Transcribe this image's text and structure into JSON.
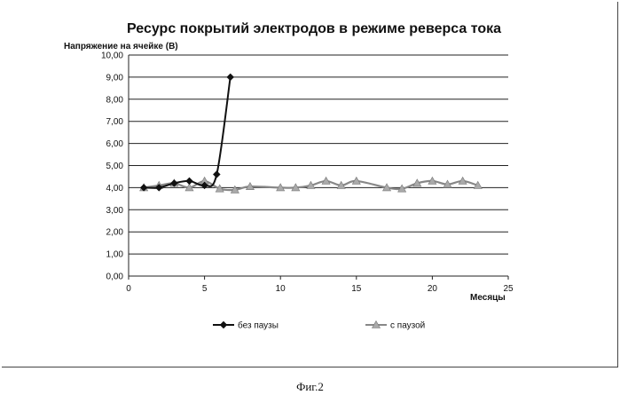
{
  "caption": "Фиг.2",
  "chart_data": {
    "type": "line",
    "title": "Ресурс покрытий  электродов в режиме реверса тока",
    "ylabel": "Напряжение на ячейке (В)",
    "xlabel": "Месяцы",
    "xlim": [
      0,
      25
    ],
    "ylim": [
      0,
      10
    ],
    "xticks": [
      "0",
      "5",
      "10",
      "15",
      "20",
      "25"
    ],
    "yticks": [
      "0,00",
      "1,00",
      "2,00",
      "3,00",
      "4,00",
      "5,00",
      "6,00",
      "7,00",
      "8,00",
      "9,00",
      "10,00"
    ],
    "grid": true,
    "legend_position": "bottom",
    "series": [
      {
        "name": "без паузы",
        "color": "#111111",
        "marker": "diamond",
        "x": [
          1,
          2,
          3,
          4,
          5,
          5.8,
          6.7
        ],
        "y": [
          4.0,
          4.0,
          4.2,
          4.3,
          4.1,
          4.6,
          9.0
        ]
      },
      {
        "name": "с паузой",
        "color": "#888888",
        "marker": "triangle",
        "x": [
          1,
          2,
          3,
          4,
          5,
          6,
          7,
          8,
          10,
          11,
          12,
          13,
          14,
          15,
          17,
          18,
          19,
          20,
          21,
          22,
          23
        ],
        "y": [
          4.0,
          4.1,
          4.2,
          4.0,
          4.3,
          3.95,
          3.9,
          4.05,
          4.0,
          4.0,
          4.1,
          4.3,
          4.1,
          4.3,
          4.0,
          3.95,
          4.2,
          4.3,
          4.15,
          4.3,
          4.1
        ]
      }
    ]
  }
}
